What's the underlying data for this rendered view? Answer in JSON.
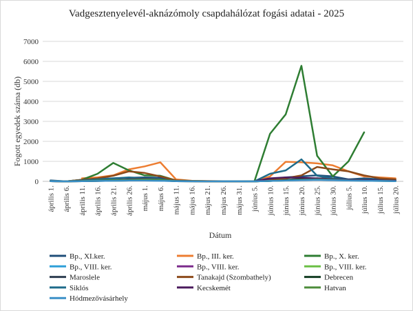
{
  "chart_data": {
    "type": "line",
    "title": "Vadgesztenyelevél-aknázómoly csapdahálózat fogási adatai - 2025",
    "xlabel": "Dátum",
    "ylabel": "Fogott egyedek száma (db)",
    "ylim": [
      0,
      7000
    ],
    "yticks": [
      "0",
      "1000",
      "2000",
      "3000",
      "4000",
      "5000",
      "6000",
      "7000"
    ],
    "grid": true,
    "legend_position": "bottom",
    "categories": [
      "április 1.",
      "április 6.",
      "április 11.",
      "április 16.",
      "április 21.",
      "április 26.",
      "május 1.",
      "május 6.",
      "május 11.",
      "május 16.",
      "május 21.",
      "május 26.",
      "május 31.",
      "június 5.",
      "június 10.",
      "június 15.",
      "június 20.",
      "június 25.",
      "június 30.",
      "július 5.",
      "július 10.",
      "július 15.",
      "július 20."
    ],
    "series": [
      {
        "name": "Bp., XI.ker.",
        "color": "#1f4e79",
        "values": [
          50,
          0,
          80,
          120,
          150,
          180,
          200,
          180,
          20,
          10,
          5,
          5,
          5,
          0,
          80,
          200,
          250,
          300,
          250,
          100,
          150,
          100,
          80
        ]
      },
      {
        "name": "Bp., III. ker.",
        "color": "#ed7d31",
        "values": [
          null,
          null,
          150,
          200,
          300,
          600,
          750,
          950,
          100,
          30,
          20,
          10,
          10,
          0,
          250,
          980,
          950,
          900,
          800,
          500,
          250,
          200,
          150
        ]
      },
      {
        "name": "Bp., X. ker.",
        "color": "#2e7d32",
        "values": [
          null,
          0,
          80,
          380,
          920,
          550,
          300,
          280,
          50,
          20,
          10,
          5,
          5,
          0,
          2380,
          3350,
          5780,
          1280,
          250,
          1000,
          2450,
          null,
          null
        ]
      },
      {
        "name": "Bp., VIII. ker.",
        "color": "#2e9fd8",
        "values": [
          30,
          0,
          10,
          20,
          30,
          40,
          40,
          30,
          10,
          5,
          5,
          5,
          5,
          0,
          20,
          40,
          60,
          80,
          60,
          40,
          40,
          30,
          20
        ]
      },
      {
        "name": "Bp., VIII. ker.",
        "color": "#7b2b8c",
        "values": [
          10,
          0,
          10,
          20,
          30,
          40,
          60,
          50,
          10,
          5,
          5,
          5,
          5,
          0,
          30,
          60,
          100,
          150,
          120,
          80,
          60,
          40,
          30
        ]
      },
      {
        "name": "Bp., VIII. ker.",
        "color": "#6abf45",
        "values": [
          10,
          0,
          10,
          20,
          30,
          40,
          60,
          50,
          10,
          5,
          5,
          5,
          5,
          0,
          20,
          40,
          80,
          120,
          100,
          60,
          40,
          30,
          20
        ]
      },
      {
        "name": "Maroslele",
        "color": "#2d3e50",
        "values": [
          10,
          0,
          20,
          40,
          60,
          80,
          80,
          60,
          20,
          10,
          5,
          5,
          5,
          0,
          40,
          80,
          120,
          140,
          100,
          60,
          40,
          30,
          20
        ]
      },
      {
        "name": "Tanakajd (Szombathely)",
        "color": "#8c4a1a",
        "values": [
          20,
          0,
          80,
          150,
          280,
          500,
          420,
          250,
          50,
          20,
          10,
          5,
          5,
          0,
          50,
          150,
          300,
          720,
          600,
          500,
          300,
          150,
          100
        ]
      },
      {
        "name": "Debrecen",
        "color": "#123d22",
        "values": [
          10,
          0,
          10,
          20,
          40,
          50,
          60,
          50,
          10,
          5,
          5,
          5,
          5,
          0,
          20,
          60,
          100,
          150,
          120,
          80,
          50,
          40,
          30
        ]
      },
      {
        "name": "Siklós",
        "color": "#1e6b8a",
        "values": [
          20,
          0,
          50,
          100,
          150,
          200,
          150,
          100,
          20,
          10,
          5,
          5,
          5,
          0,
          380,
          550,
          1100,
          280,
          150,
          100,
          80,
          50,
          30
        ]
      },
      {
        "name": "Kecskemét",
        "color": "#4a1a5c",
        "values": [
          10,
          0,
          20,
          40,
          60,
          100,
          120,
          80,
          20,
          10,
          5,
          5,
          5,
          0,
          150,
          200,
          180,
          150,
          100,
          80,
          60,
          40,
          30
        ]
      },
      {
        "name": "Hatvan",
        "color": "#4c8c3a",
        "values": [
          10,
          0,
          20,
          40,
          60,
          80,
          100,
          80,
          20,
          10,
          5,
          5,
          5,
          0,
          20,
          50,
          80,
          100,
          80,
          50,
          30,
          20,
          10
        ]
      },
      {
        "name": "Hódmezővásárhely",
        "color": "#3a8fc7",
        "values": [
          10,
          0,
          10,
          20,
          30,
          40,
          40,
          30,
          10,
          5,
          5,
          5,
          5,
          0,
          20,
          40,
          60,
          80,
          60,
          40,
          30,
          20,
          10
        ]
      }
    ]
  }
}
